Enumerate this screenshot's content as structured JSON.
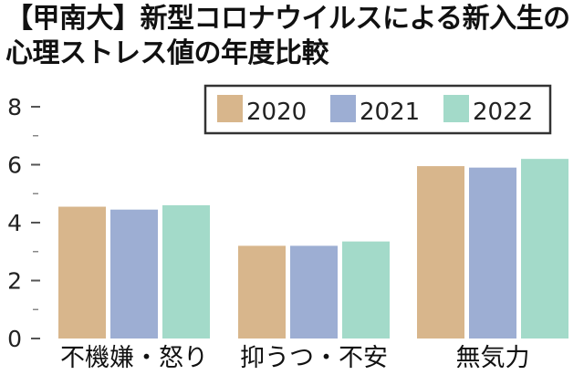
{
  "chart_data": {
    "type": "bar",
    "title_lines": [
      "【甲南大】新型コロナウイルスによる新入生の",
      "心理ストレス値の年度比較"
    ],
    "categories": [
      "不機嫌・怒り",
      "抑うつ・不安",
      "無気力"
    ],
    "series": [
      {
        "name": "2020",
        "color": "#d8b68c",
        "values": [
          4.55,
          3.2,
          5.95
        ]
      },
      {
        "name": "2021",
        "color": "#9daed3",
        "values": [
          4.45,
          3.2,
          5.9
        ]
      },
      {
        "name": "2022",
        "color": "#a3dac9",
        "values": [
          4.6,
          3.35,
          6.2
        ]
      }
    ],
    "ylim": [
      0,
      8
    ],
    "major_ticks": [
      0,
      2,
      4,
      6,
      8
    ],
    "minor_ticks": [
      1,
      3,
      5,
      7
    ],
    "grid": false,
    "legend": "top-right"
  }
}
